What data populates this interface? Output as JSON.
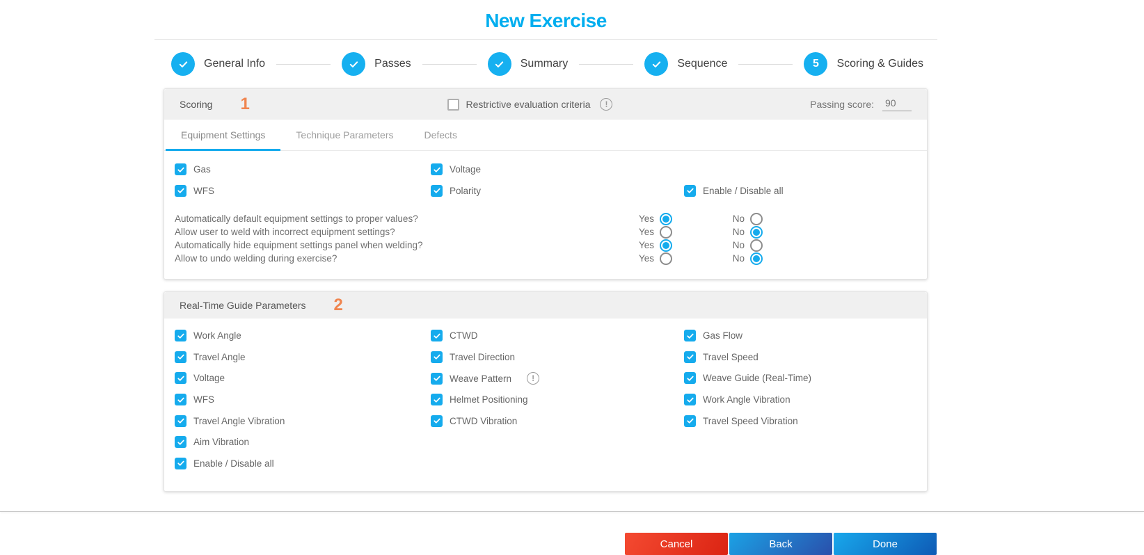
{
  "title": "New Exercise",
  "stepper": {
    "steps": [
      {
        "label": "General Info",
        "status": "done"
      },
      {
        "label": "Passes",
        "status": "done"
      },
      {
        "label": "Summary",
        "status": "done"
      },
      {
        "label": "Sequence",
        "status": "done"
      },
      {
        "label": "Scoring & Guides",
        "status": "current",
        "number": "5"
      }
    ]
  },
  "scoring": {
    "annotation": "1",
    "title": "Scoring",
    "restrictive": {
      "label": "Restrictive evaluation criteria",
      "checked": false,
      "info": true
    },
    "passing_score": {
      "label": "Passing score:",
      "value": "90"
    },
    "tabs": [
      {
        "label": "Equipment Settings",
        "active": true
      },
      {
        "label": "Technique Parameters",
        "active": false
      },
      {
        "label": "Defects",
        "active": false
      }
    ],
    "checkbox_rows": [
      [
        {
          "label": "Gas",
          "checked": true
        },
        {
          "label": "Voltage",
          "checked": true
        },
        null
      ],
      [
        {
          "label": "WFS",
          "checked": true
        },
        {
          "label": "Polarity",
          "checked": true
        },
        {
          "label": "Enable / Disable all",
          "checked": true
        }
      ]
    ],
    "yes_label": "Yes",
    "no_label": "No",
    "questions": [
      {
        "text": "Automatically default equipment settings to proper values?",
        "answer": "yes"
      },
      {
        "text": "Allow user to weld with incorrect equipment settings?",
        "answer": "no"
      },
      {
        "text": "Automatically hide equipment settings panel when welding?",
        "answer": "yes"
      },
      {
        "text": "Allow to undo welding during exercise?",
        "answer": "no"
      }
    ]
  },
  "guides": {
    "annotation": "2",
    "title": "Real-Time Guide Parameters",
    "checkbox_rows": [
      [
        {
          "label": "Work Angle",
          "checked": true
        },
        {
          "label": "CTWD",
          "checked": true
        },
        {
          "label": "Gas Flow",
          "checked": true
        }
      ],
      [
        {
          "label": "Travel Angle",
          "checked": true
        },
        {
          "label": "Travel Direction",
          "checked": true
        },
        {
          "label": "Travel Speed",
          "checked": true
        }
      ],
      [
        {
          "label": "Voltage",
          "checked": true
        },
        {
          "label": "Weave Pattern",
          "checked": true,
          "info": true
        },
        {
          "label": "Weave Guide (Real-Time)",
          "checked": true
        }
      ],
      [
        {
          "label": "WFS",
          "checked": true
        },
        {
          "label": "Helmet Positioning",
          "checked": true
        },
        {
          "label": "Work Angle Vibration",
          "checked": true
        }
      ],
      [
        {
          "label": "Travel Angle Vibration",
          "checked": true
        },
        {
          "label": "CTWD Vibration",
          "checked": true
        },
        {
          "label": "Travel Speed Vibration",
          "checked": true
        }
      ],
      [
        {
          "label": "Aim Vibration",
          "checked": true
        },
        null,
        null
      ],
      [
        {
          "label": "Enable / Disable all",
          "checked": true
        },
        null,
        null
      ]
    ]
  },
  "footer": {
    "cancel": "Cancel",
    "back": "Back",
    "done": "Done"
  },
  "colors": {
    "primary_cyan": "#15abed",
    "title_cyan": "#00aeef",
    "annotation_orange": "#f0854f",
    "cancel_red": "#e8321c",
    "button_blue": "#1a7fd4"
  }
}
